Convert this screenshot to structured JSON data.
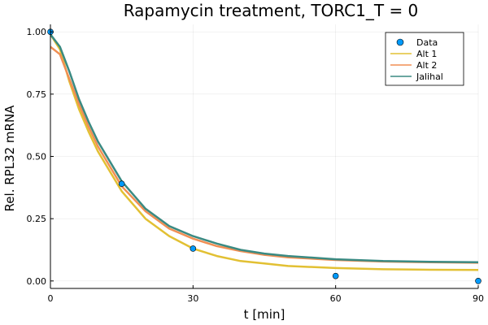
{
  "chart_data": {
    "type": "line",
    "title": "Rapamycin treatment, TORC1_T = 0",
    "xlabel": "t [min]",
    "ylabel": "Rel. RPL32 mRNA",
    "xlim": [
      0,
      90
    ],
    "ylim": [
      -0.03,
      1.03
    ],
    "xticks": [
      {
        "value": 0,
        "label": "0"
      },
      {
        "value": 30,
        "label": "30"
      },
      {
        "value": 60,
        "label": "60"
      },
      {
        "value": 90,
        "label": "90"
      }
    ],
    "yticks": [
      {
        "value": 0.0,
        "label": "0.00"
      },
      {
        "value": 0.25,
        "label": "0.25"
      },
      {
        "value": 0.5,
        "label": "0.50"
      },
      {
        "value": 0.75,
        "label": "0.75"
      },
      {
        "value": 1.0,
        "label": "1.00"
      }
    ],
    "grid": true,
    "legend_position": "top-right",
    "scatter": {
      "name": "Data",
      "color": "#009AFA",
      "x": [
        0,
        15,
        30,
        60,
        90
      ],
      "y": [
        1.0,
        0.39,
        0.13,
        0.02,
        0.0
      ]
    },
    "series": [
      {
        "name": "Alt 1",
        "color": "#E2C033",
        "x": [
          0,
          2,
          4,
          6,
          8,
          10,
          15,
          20,
          25,
          30,
          35,
          40,
          45,
          50,
          60,
          70,
          80,
          90
        ],
        "y": [
          0.99,
          0.93,
          0.8,
          0.69,
          0.6,
          0.52,
          0.36,
          0.25,
          0.18,
          0.13,
          0.1,
          0.08,
          0.07,
          0.06,
          0.052,
          0.047,
          0.045,
          0.044
        ]
      },
      {
        "name": "Alt 2",
        "color": "#F08F54",
        "x": [
          0,
          2,
          4,
          6,
          8,
          10,
          15,
          20,
          25,
          30,
          35,
          40,
          45,
          50,
          60,
          70,
          80,
          90
        ],
        "y": [
          0.94,
          0.91,
          0.81,
          0.71,
          0.62,
          0.54,
          0.38,
          0.28,
          0.21,
          0.17,
          0.14,
          0.12,
          0.105,
          0.095,
          0.084,
          0.078,
          0.075,
          0.073
        ]
      },
      {
        "name": "Jalihal",
        "color": "#3A8A82",
        "x": [
          0,
          2,
          4,
          6,
          8,
          10,
          15,
          20,
          25,
          30,
          35,
          40,
          45,
          50,
          60,
          70,
          80,
          90
        ],
        "y": [
          0.99,
          0.94,
          0.84,
          0.73,
          0.64,
          0.56,
          0.4,
          0.29,
          0.22,
          0.18,
          0.15,
          0.125,
          0.11,
          0.1,
          0.087,
          0.08,
          0.077,
          0.075
        ]
      }
    ]
  }
}
